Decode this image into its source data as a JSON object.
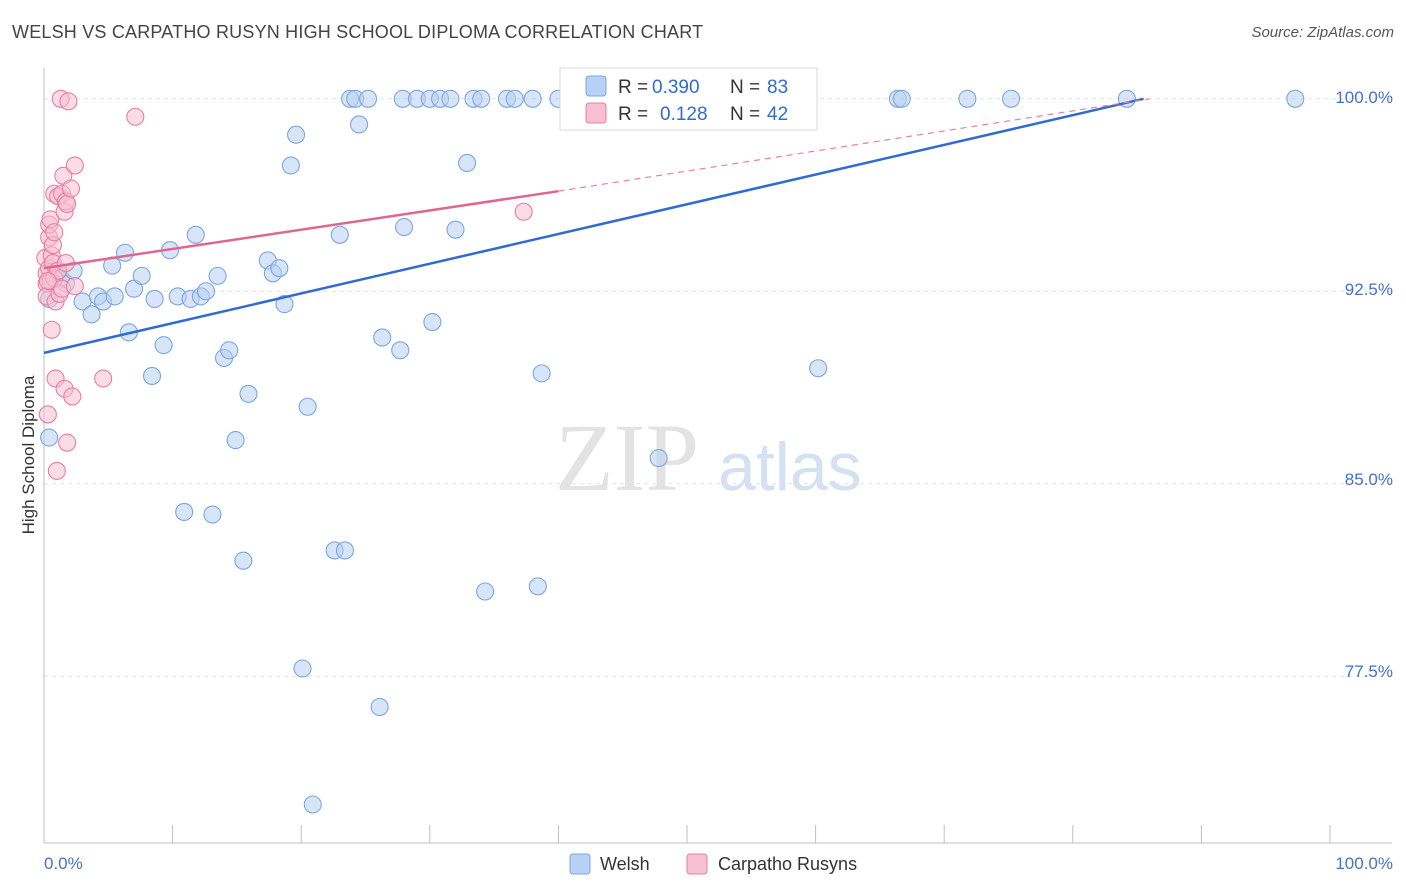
{
  "title": "WELSH VS CARPATHO RUSYN HIGH SCHOOL DIPLOMA CORRELATION CHART",
  "source": "Source: ZipAtlas.com",
  "watermark": {
    "zip": "ZIP",
    "atlas": "atlas"
  },
  "chart_data": {
    "type": "scatter",
    "title": "WELSH VS CARPATHO RUSYN HIGH SCHOOL DIPLOMA CORRELATION CHART",
    "xlabel": "",
    "ylabel": "High School Diploma",
    "xlim": [
      0,
      100
    ],
    "ylim": [
      71.0,
      101.2
    ],
    "x_tick_labels": [
      "0.0%",
      "100.0%"
    ],
    "y_ticks": [
      77.5,
      85.0,
      92.5,
      100.0
    ],
    "y_tick_labels": [
      "77.5%",
      "85.0%",
      "92.5%",
      "100.0%"
    ],
    "grid": true,
    "legend": {
      "rows": [
        {
          "r_label": "R =",
          "r_value": "0.390",
          "n_label": "N =",
          "n_value": "83"
        },
        {
          "r_label": "R =",
          "r_value": "0.128",
          "n_label": "N =",
          "n_value": "42"
        }
      ]
    },
    "series": [
      {
        "name": "Welsh",
        "color": "#7aa7e0",
        "fill": "#b8d0f3",
        "trend": {
          "x": [
            0,
            85.5
          ],
          "y": [
            90.1,
            100.0
          ]
        },
        "points": [
          [
            0.4,
            92.2
          ],
          [
            0.4,
            86.8
          ],
          [
            0.9,
            93.2
          ],
          [
            1.3,
            93.0
          ],
          [
            1.7,
            92.8
          ],
          [
            2.3,
            93.3
          ],
          [
            3.0,
            92.1
          ],
          [
            3.7,
            91.6
          ],
          [
            4.2,
            92.3
          ],
          [
            4.6,
            92.1
          ],
          [
            5.3,
            93.5
          ],
          [
            5.5,
            92.3
          ],
          [
            6.3,
            94.0
          ],
          [
            6.6,
            90.9
          ],
          [
            7.0,
            92.6
          ],
          [
            7.6,
            93.1
          ],
          [
            8.4,
            89.2
          ],
          [
            8.6,
            92.2
          ],
          [
            9.3,
            90.4
          ],
          [
            9.8,
            94.1
          ],
          [
            10.4,
            92.3
          ],
          [
            10.9,
            83.9
          ],
          [
            11.4,
            92.2
          ],
          [
            11.8,
            94.7
          ],
          [
            12.2,
            92.3
          ],
          [
            12.6,
            92.5
          ],
          [
            13.1,
            83.8
          ],
          [
            13.5,
            93.1
          ],
          [
            14.0,
            89.9
          ],
          [
            14.4,
            90.2
          ],
          [
            14.9,
            86.7
          ],
          [
            15.5,
            82.0
          ],
          [
            15.9,
            88.5
          ],
          [
            17.4,
            93.7
          ],
          [
            17.8,
            93.2
          ],
          [
            18.3,
            93.4
          ],
          [
            18.7,
            92.0
          ],
          [
            19.2,
            97.4
          ],
          [
            19.6,
            98.6
          ],
          [
            20.1,
            77.8
          ],
          [
            20.5,
            88.0
          ],
          [
            20.9,
            72.5
          ],
          [
            22.6,
            82.4
          ],
          [
            23.0,
            94.7
          ],
          [
            23.4,
            82.4
          ],
          [
            23.8,
            100.0
          ],
          [
            24.2,
            100.0
          ],
          [
            24.5,
            99.0
          ],
          [
            25.2,
            100.0
          ],
          [
            26.1,
            76.3
          ],
          [
            26.3,
            90.7
          ],
          [
            27.7,
            90.2
          ],
          [
            27.9,
            100.0
          ],
          [
            28.0,
            95.0
          ],
          [
            29.0,
            100.0
          ],
          [
            30.0,
            100.0
          ],
          [
            30.2,
            91.3
          ],
          [
            30.8,
            100.0
          ],
          [
            31.6,
            100.0
          ],
          [
            32.0,
            94.9
          ],
          [
            32.9,
            97.5
          ],
          [
            33.4,
            100.0
          ],
          [
            34.0,
            100.0
          ],
          [
            34.3,
            80.8
          ],
          [
            36.0,
            100.0
          ],
          [
            36.6,
            100.0
          ],
          [
            38.0,
            100.0
          ],
          [
            38.4,
            81.0
          ],
          [
            38.7,
            89.3
          ],
          [
            40.0,
            100.0
          ],
          [
            41.4,
            100.0
          ],
          [
            41.9,
            100.0
          ],
          [
            44.1,
            100.0
          ],
          [
            47.8,
            86.0
          ],
          [
            50.0,
            100.0
          ],
          [
            57.0,
            100.0
          ],
          [
            60.2,
            89.5
          ],
          [
            66.4,
            100.0
          ],
          [
            66.7,
            100.0
          ],
          [
            71.8,
            100.0
          ],
          [
            75.2,
            100.0
          ],
          [
            84.2,
            100.0
          ],
          [
            97.3,
            100.0
          ]
        ]
      },
      {
        "name": "Carpatho Rusyns",
        "color": "#e77fa3",
        "fill": "#f7bfd2",
        "trend": {
          "x": [
            0,
            40.0
          ],
          "y": [
            93.4,
            96.4
          ]
        },
        "trend_dashed": {
          "x": [
            40.0,
            86.0
          ],
          "y": [
            96.4,
            100.0
          ]
        },
        "points": [
          [
            0.1,
            93.8
          ],
          [
            0.2,
            93.2
          ],
          [
            0.2,
            92.8
          ],
          [
            0.2,
            92.3
          ],
          [
            0.3,
            87.7
          ],
          [
            0.4,
            94.6
          ],
          [
            0.4,
            95.1
          ],
          [
            0.4,
            93.4
          ],
          [
            0.5,
            95.3
          ],
          [
            0.5,
            92.9
          ],
          [
            0.6,
            91.0
          ],
          [
            0.6,
            93.9
          ],
          [
            0.7,
            94.3
          ],
          [
            0.7,
            93.6
          ],
          [
            0.8,
            94.8
          ],
          [
            0.8,
            96.3
          ],
          [
            0.8,
            93.0
          ],
          [
            0.9,
            92.1
          ],
          [
            0.9,
            89.1
          ],
          [
            1.0,
            85.5
          ],
          [
            1.1,
            96.2
          ],
          [
            1.1,
            93.3
          ],
          [
            1.2,
            92.4
          ],
          [
            1.3,
            100.0
          ],
          [
            1.4,
            96.3
          ],
          [
            1.4,
            92.6
          ],
          [
            1.5,
            97.0
          ],
          [
            1.6,
            88.7
          ],
          [
            1.6,
            95.6
          ],
          [
            1.7,
            96.0
          ],
          [
            1.7,
            93.6
          ],
          [
            1.8,
            95.9
          ],
          [
            1.8,
            86.6
          ],
          [
            1.9,
            99.9
          ],
          [
            2.1,
            96.5
          ],
          [
            2.2,
            88.4
          ],
          [
            2.4,
            97.4
          ],
          [
            2.4,
            92.7
          ],
          [
            4.6,
            89.1
          ],
          [
            7.1,
            99.3
          ],
          [
            37.3,
            95.6
          ],
          [
            0.3,
            92.9
          ]
        ]
      }
    ]
  }
}
